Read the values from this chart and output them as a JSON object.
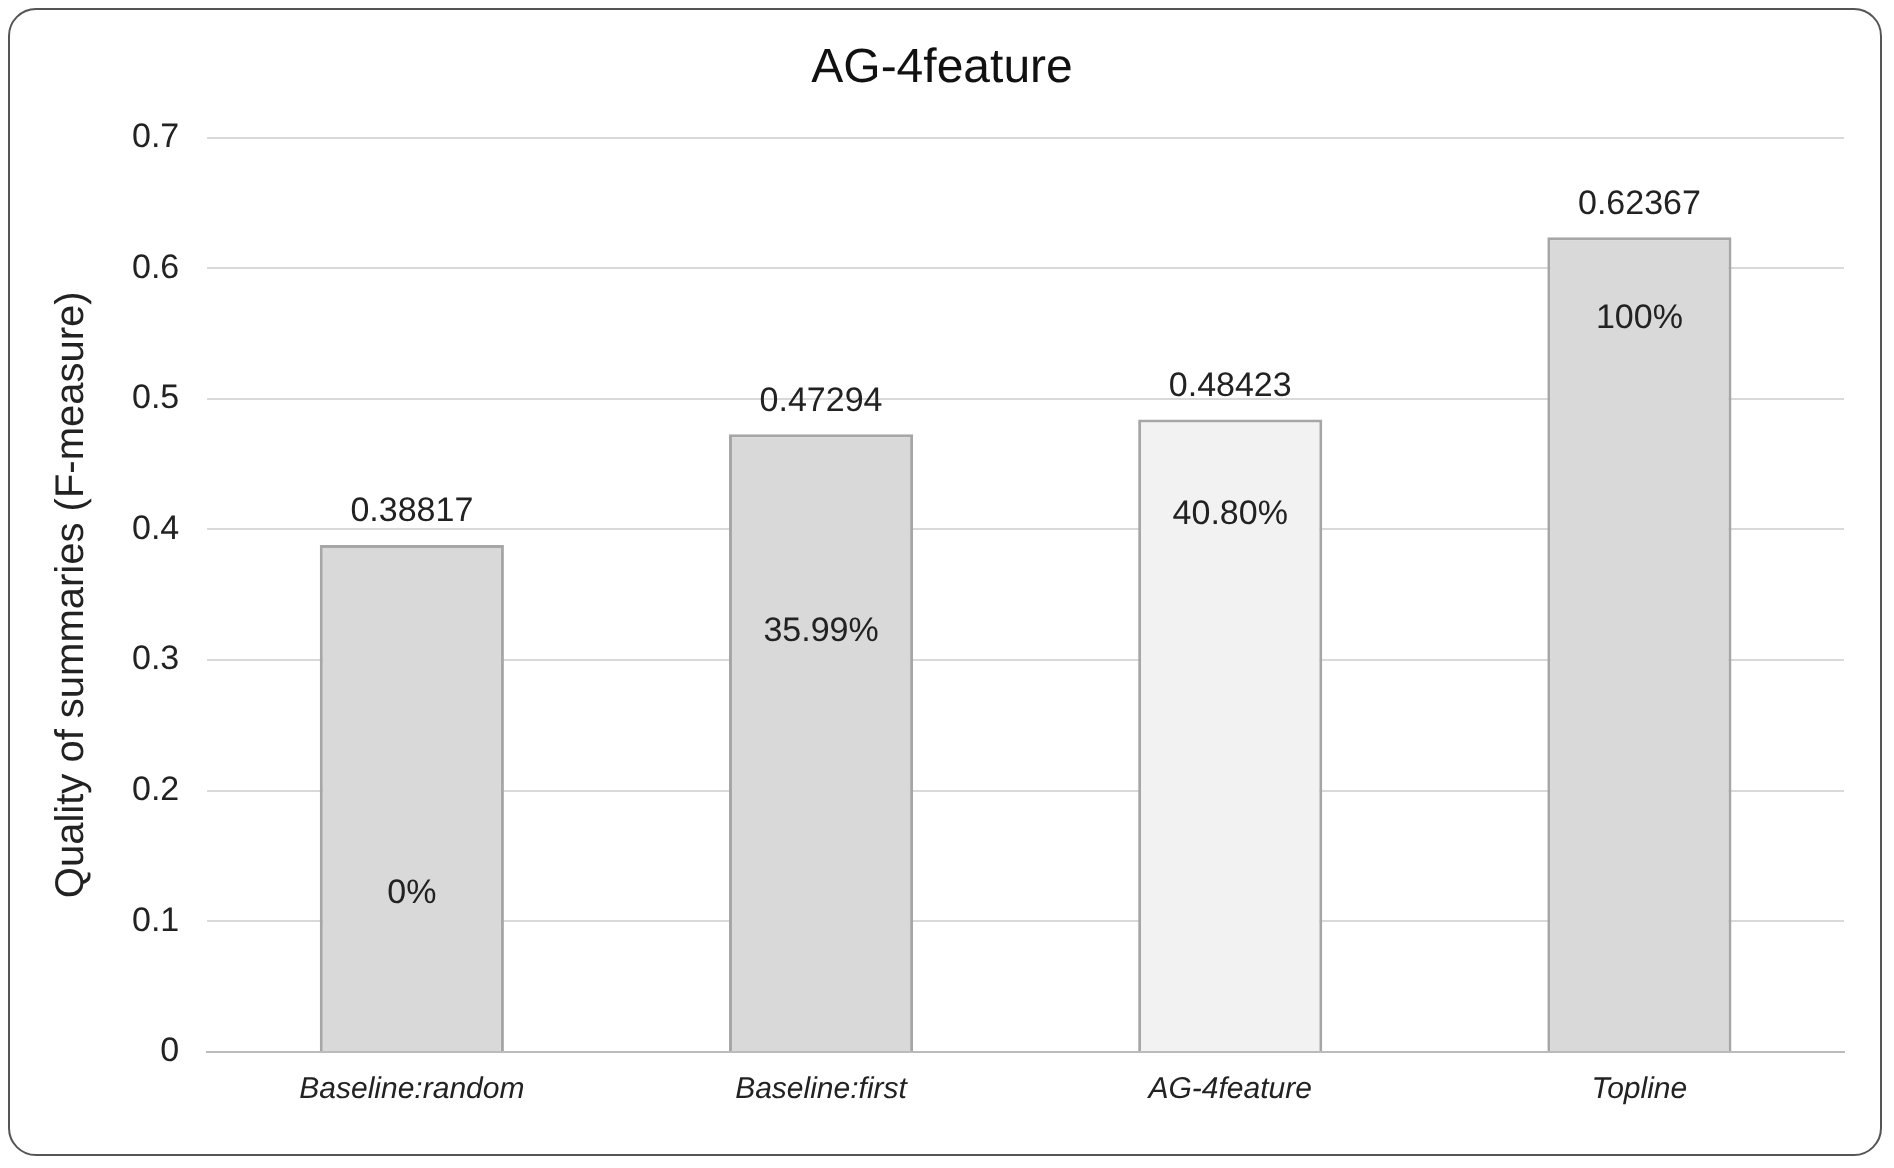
{
  "chart_data": {
    "type": "bar",
    "title": "AG-4feature",
    "ylabel": "Quality of summaries (F-measure)",
    "categories": [
      "Baseline:random",
      "Baseline:first",
      "AG-4feature",
      "Topline"
    ],
    "values": [
      0.38817,
      0.47294,
      0.48423,
      0.62367
    ],
    "colors": [
      "#d9d9d9",
      "#d9d9d9",
      "#f2f2f2",
      "#d9d9d9"
    ],
    "ylim": [
      0,
      0.7
    ],
    "yticks": [
      0,
      0.1,
      0.2,
      0.3,
      0.4,
      0.5,
      0.6,
      0.7
    ],
    "grid": "y",
    "data_labels": true,
    "annotations": [
      "0%",
      "35.99%",
      "40.80%",
      "100%"
    ]
  }
}
